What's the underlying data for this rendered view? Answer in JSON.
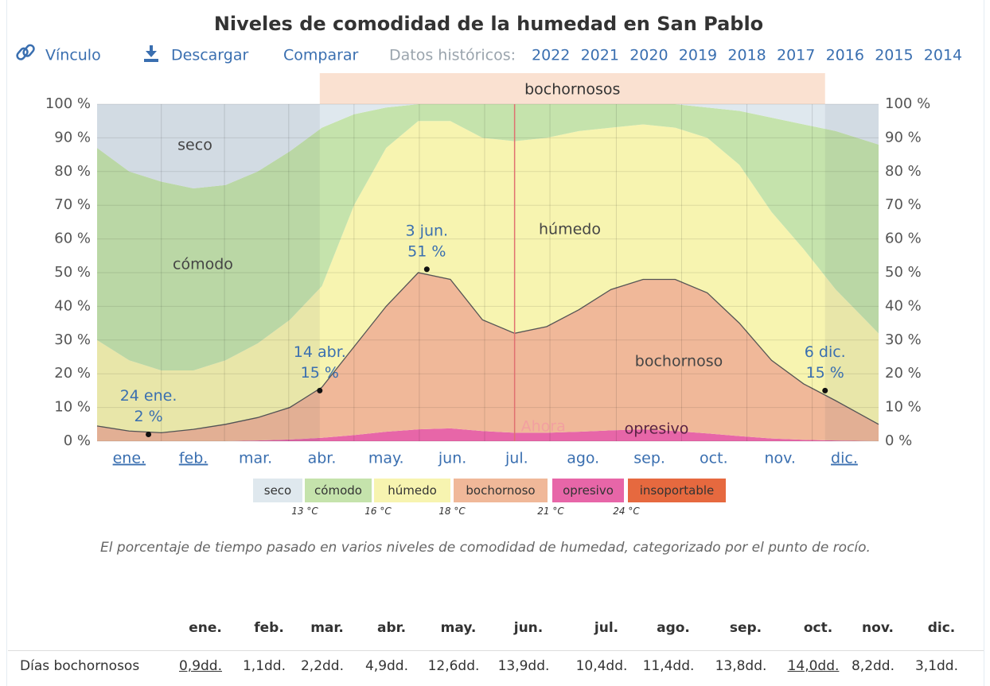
{
  "header": {
    "title": "Niveles de comodidad de la humedad en San Pablo",
    "toolbar": {
      "link": "Vínculo",
      "download": "Descargar",
      "compare": "Comparar",
      "history_label": "Datos históricos:",
      "years": [
        "2022",
        "2021",
        "2020",
        "2019",
        "2018",
        "2017",
        "2016",
        "2015",
        "2014"
      ]
    }
  },
  "chart_data": {
    "type": "stacked_area",
    "x": [
      0,
      15,
      30,
      45,
      60,
      75,
      90,
      105,
      120,
      135,
      150,
      165,
      180,
      195,
      210,
      225,
      240,
      255,
      270,
      285,
      300,
      315,
      330,
      345,
      365
    ],
    "xlim": [
      0,
      365
    ],
    "xticks": [
      {
        "value": 15,
        "label": "ene."
      },
      {
        "value": 45,
        "label": "feb."
      },
      {
        "value": 74,
        "label": "mar."
      },
      {
        "value": 105,
        "label": "abr."
      },
      {
        "value": 135,
        "label": "may."
      },
      {
        "value": 166,
        "label": "jun."
      },
      {
        "value": 196,
        "label": "jul."
      },
      {
        "value": 227,
        "label": "ago."
      },
      {
        "value": 258,
        "label": "sep."
      },
      {
        "value": 288,
        "label": "oct."
      },
      {
        "value": 319,
        "label": "nov."
      },
      {
        "value": 349,
        "label": "dic."
      }
    ],
    "ylim": [
      0,
      100
    ],
    "yticks": [
      {
        "value": 0,
        "label": "0 %"
      },
      {
        "value": 10,
        "label": "10 %"
      },
      {
        "value": 20,
        "label": "20 %"
      },
      {
        "value": 30,
        "label": "30 %"
      },
      {
        "value": 40,
        "label": "40 %"
      },
      {
        "value": 50,
        "label": "50 %"
      },
      {
        "value": 60,
        "label": "60 %"
      },
      {
        "value": 70,
        "label": "70 %"
      },
      {
        "value": 80,
        "label": "80 %"
      },
      {
        "value": 90,
        "label": "90 %"
      },
      {
        "value": 100,
        "label": "100 %"
      }
    ],
    "grid": true,
    "series": [
      {
        "name": "seco",
        "color": "#dfe8ee",
        "values": [
          13,
          20,
          23,
          25,
          24,
          20,
          14,
          7,
          3,
          1,
          0,
          0,
          0,
          0,
          0,
          0,
          0,
          0,
          0,
          1,
          2,
          4,
          6,
          8,
          12
        ]
      },
      {
        "name": "cómodo",
        "color": "#c5e3ac",
        "values": [
          57,
          56,
          56,
          54,
          52,
          51,
          50,
          47,
          27,
          12,
          5,
          5,
          10,
          11,
          10,
          8,
          7,
          6,
          7,
          9,
          16,
          28,
          37,
          47,
          56
        ]
      },
      {
        "name": "húmedo",
        "color": "#f7f4b0",
        "values": [
          25.5,
          21,
          18.5,
          17.5,
          19,
          22,
          26,
          30,
          42,
          47,
          45,
          47,
          54,
          57,
          56,
          53,
          48,
          46,
          45,
          46,
          47,
          44,
          40,
          33,
          27
        ]
      },
      {
        "name": "bochornoso",
        "color": "#f0b899",
        "values": [
          4.5,
          3,
          2.5,
          3.5,
          5,
          6.8,
          9.5,
          15,
          26.2,
          37.2,
          46.5,
          44.2,
          33,
          29.5,
          31.5,
          36.2,
          41.8,
          44.5,
          45,
          41.7,
          33.5,
          23.2,
          16.6,
          11.8,
          5
        ]
      },
      {
        "name": "opresivo",
        "color": "#e766a8",
        "values": [
          0,
          0,
          0,
          0,
          0,
          0.2,
          0.5,
          1,
          1.8,
          2.8,
          3.5,
          3.8,
          3,
          2.5,
          2.5,
          2.8,
          3.2,
          3.5,
          3,
          2.3,
          1.5,
          0.8,
          0.4,
          0.2,
          0
        ]
      },
      {
        "name": "insoportable",
        "color": "#e6693f",
        "values": [
          0,
          0,
          0,
          0,
          0,
          0,
          0,
          0,
          0,
          0,
          0,
          0,
          0,
          0,
          0,
          0,
          0,
          0,
          0,
          0,
          0,
          0,
          0,
          0,
          0
        ]
      }
    ],
    "season": {
      "label": "bochornosos",
      "start": 104,
      "end": 340
    },
    "now": {
      "label": "Ahora",
      "x": 195
    },
    "annotations": [
      {
        "label": "24 ene.",
        "value_label": "2 %",
        "x": 24,
        "y": 2
      },
      {
        "label": "14 abr.",
        "value_label": "15 %",
        "x": 104,
        "y": 15
      },
      {
        "label": "3 jun.",
        "value_label": "51 %",
        "x": 154,
        "y": 51
      },
      {
        "label": "6 dic.",
        "value_label": "15 %",
        "x": 340,
        "y": 15
      }
    ],
    "legend": {
      "thresholds": [
        "13 °C",
        "16 °C",
        "18 °C",
        "21 °C",
        "24 °C"
      ]
    }
  },
  "caption": "El porcentaje de tiempo pasado en varios niveles de comodidad de humedad, categorizado por el punto de rocío.",
  "table": {
    "columns": [
      "ene.",
      "feb.",
      "mar.",
      "abr.",
      "may.",
      "jun.",
      "jul.",
      "ago.",
      "sep.",
      "oct.",
      "nov.",
      "dic."
    ],
    "rows": [
      {
        "label": "Días bochornosos",
        "values": [
          "0,9dd.",
          "1,1dd.",
          "2,2dd.",
          "4,9dd.",
          "12,6dd.",
          "13,9dd.",
          "10,4dd.",
          "11,4dd.",
          "13,8dd.",
          "14,0dd.",
          "8,2dd.",
          "3,1dd."
        ]
      }
    ]
  }
}
